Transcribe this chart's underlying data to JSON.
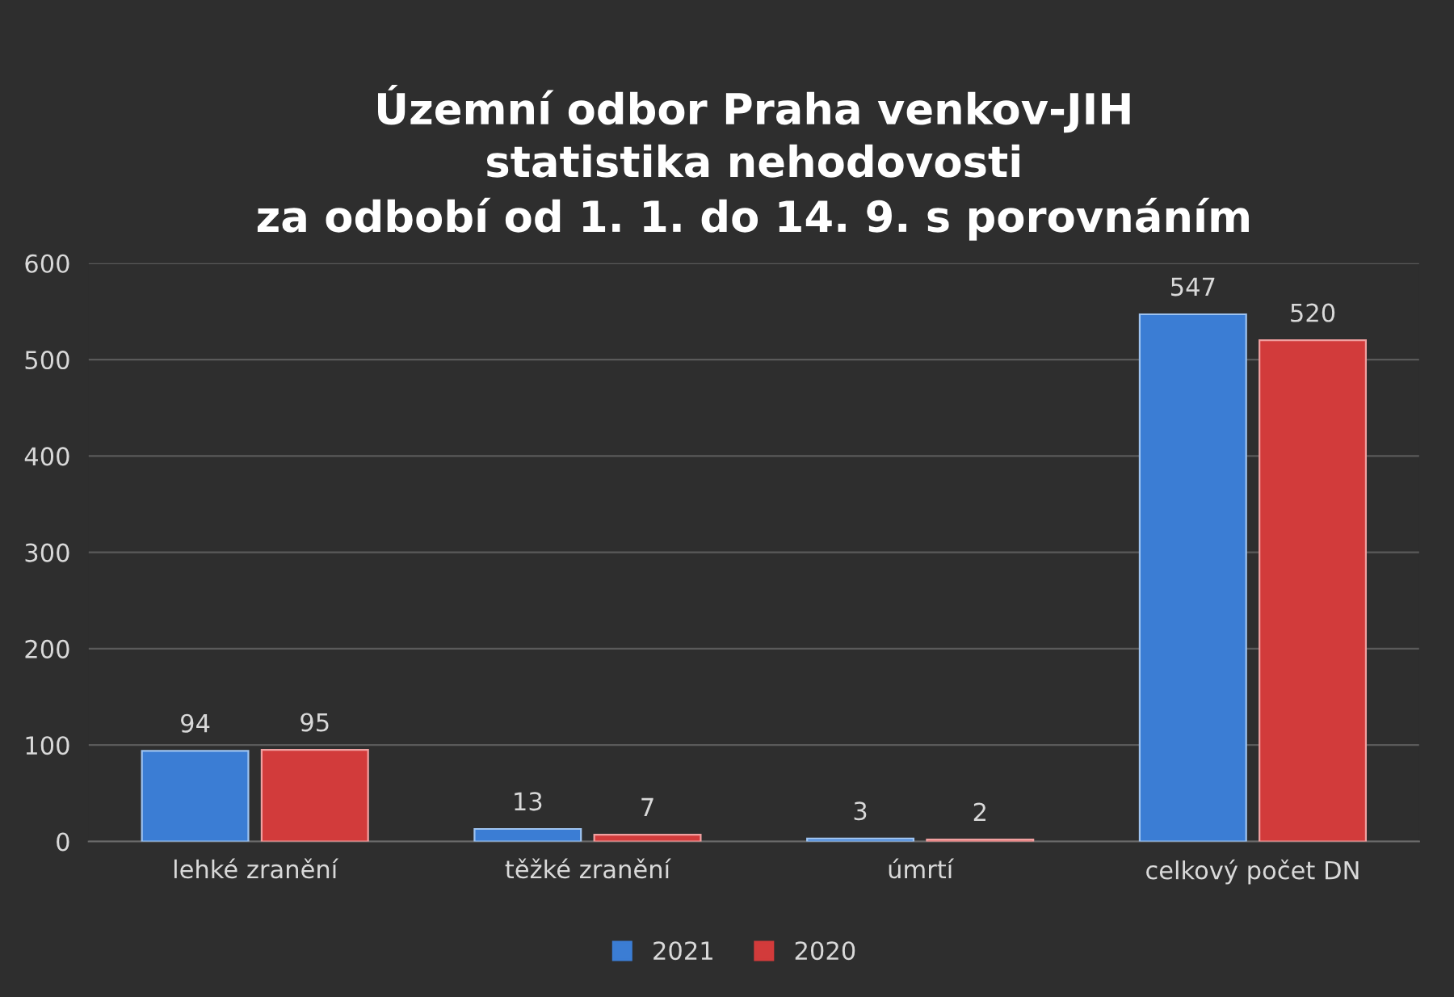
{
  "chart_data": {
    "type": "bar",
    "title": "Územní odbor Praha venkov-JIH\nstatistika nehodovosti\nza odbobí od 1. 1. do 14. 9. s porovnáním",
    "categories": [
      "lehké zranění",
      "těžké zranění",
      "úmrtí",
      "celkový počet DN"
    ],
    "series": [
      {
        "name": "2021",
        "color": "#3b7dd4",
        "values": [
          94,
          13,
          3,
          547
        ]
      },
      {
        "name": "2020",
        "color": "#d23b3b",
        "values": [
          95,
          7,
          2,
          520
        ]
      }
    ],
    "ylim": [
      0,
      600
    ],
    "yticks": [
      0,
      100,
      200,
      300,
      400,
      500,
      600
    ],
    "grid": "y",
    "legend": "bottom",
    "data_labels": true
  }
}
